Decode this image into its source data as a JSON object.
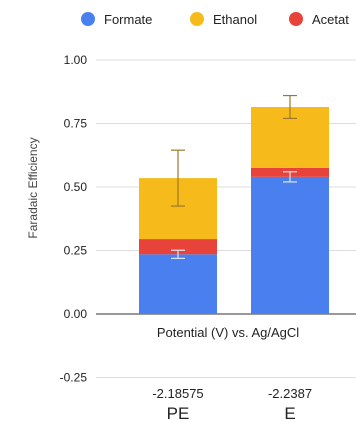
{
  "chart_data": {
    "type": "bar",
    "stacked": true,
    "legend_position": "top",
    "legend_items": [
      {
        "name": "Formate",
        "color": "#4a7ff0"
      },
      {
        "name": "Ethanol",
        "color": "#f6bb1a"
      },
      {
        "name": "Acetat",
        "color": "#e8433a"
      }
    ],
    "ylabel": "Faradaic Efficiency",
    "xlabel": "Potential (V) vs. Ag/AgCl",
    "ylim": [
      -0.25,
      1.0
    ],
    "yticks": [
      "1.00",
      "0.75",
      "0.50",
      "0.25",
      "0.00",
      "-0.25"
    ],
    "ytick_values": [
      1.0,
      0.75,
      0.5,
      0.25,
      0.0,
      -0.25
    ],
    "grid": true,
    "categories": [
      {
        "potential": "-2.18575",
        "label": "PE"
      },
      {
        "potential": "-2.2387",
        "label": "E"
      }
    ],
    "series": [
      {
        "name": "Formate",
        "color": "#4a7ff0",
        "values": [
          0.235,
          0.54
        ],
        "errors": [
          0.016,
          0.02
        ],
        "error_color": "#dde4ef"
      },
      {
        "name": "Acetate",
        "color": "#e8433a",
        "values": [
          0.06,
          0.035
        ],
        "errors": [
          0,
          0
        ],
        "error_color": "#999999"
      },
      {
        "name": "Ethanol",
        "color": "#f6bb1a",
        "values": [
          0.24,
          0.24
        ],
        "errors": [
          0.11,
          0.045
        ],
        "error_color": "#9a7a2a"
      }
    ]
  }
}
